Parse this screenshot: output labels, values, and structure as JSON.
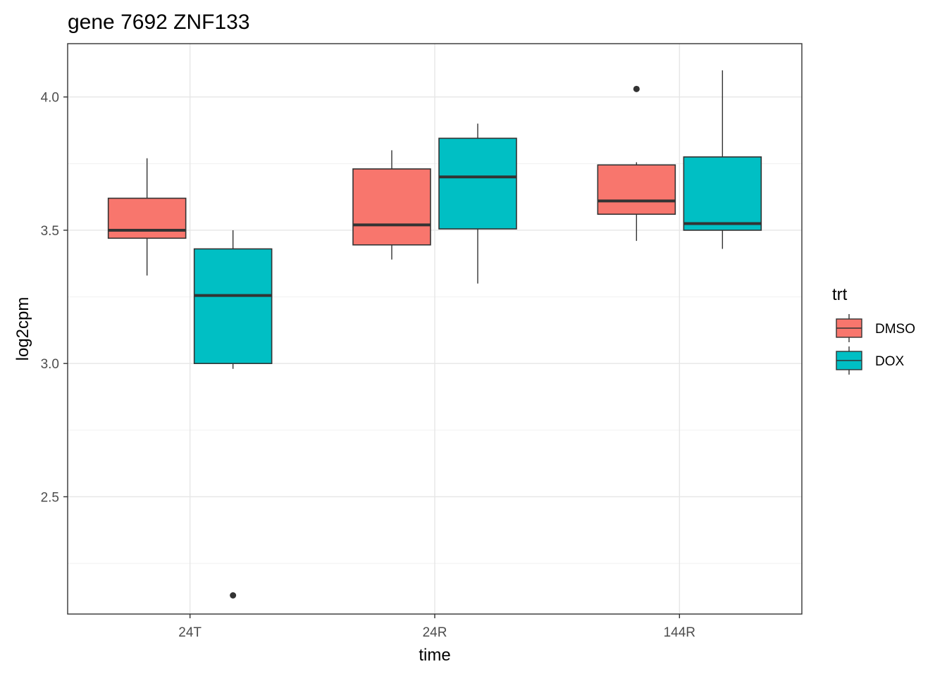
{
  "chart_data": {
    "type": "boxplot",
    "title": "gene 7692 ZNF133",
    "xlabel": "time",
    "ylabel": "log2cpm",
    "categories": [
      "24T",
      "24R",
      "144R"
    ],
    "ylim": [
      2.06,
      4.2
    ],
    "yticks": [
      2.5,
      3.0,
      3.5,
      4.0
    ],
    "ytick_labels": [
      "2.5",
      "3.0",
      "3.5",
      "4.0"
    ],
    "grid": true,
    "legend": {
      "title": "trt",
      "position": "right",
      "entries": [
        "DMSO",
        "DOX"
      ]
    },
    "series": [
      {
        "name": "DMSO",
        "color": "#F8766D",
        "boxes": [
          {
            "category": "24T",
            "whisker_low": 3.33,
            "q1": 3.47,
            "median": 3.5,
            "q3": 3.62,
            "whisker_high": 3.77,
            "outliers": []
          },
          {
            "category": "24R",
            "whisker_low": 3.39,
            "q1": 3.445,
            "median": 3.52,
            "q3": 3.73,
            "whisker_high": 3.8,
            "outliers": []
          },
          {
            "category": "144R",
            "whisker_low": 3.46,
            "q1": 3.56,
            "median": 3.61,
            "q3": 3.745,
            "whisker_high": 3.755,
            "outliers": [
              4.03
            ]
          }
        ]
      },
      {
        "name": "DOX",
        "color": "#00BFC4",
        "boxes": [
          {
            "category": "24T",
            "whisker_low": 2.98,
            "q1": 3.0,
            "median": 3.255,
            "q3": 3.43,
            "whisker_high": 3.5,
            "outliers": [
              2.13
            ]
          },
          {
            "category": "24R",
            "whisker_low": 3.3,
            "q1": 3.505,
            "median": 3.7,
            "q3": 3.845,
            "whisker_high": 3.9,
            "outliers": []
          },
          {
            "category": "144R",
            "whisker_low": 3.43,
            "q1": 3.5,
            "median": 3.525,
            "q3": 3.775,
            "whisker_high": 4.1,
            "outliers": []
          }
        ]
      }
    ]
  }
}
